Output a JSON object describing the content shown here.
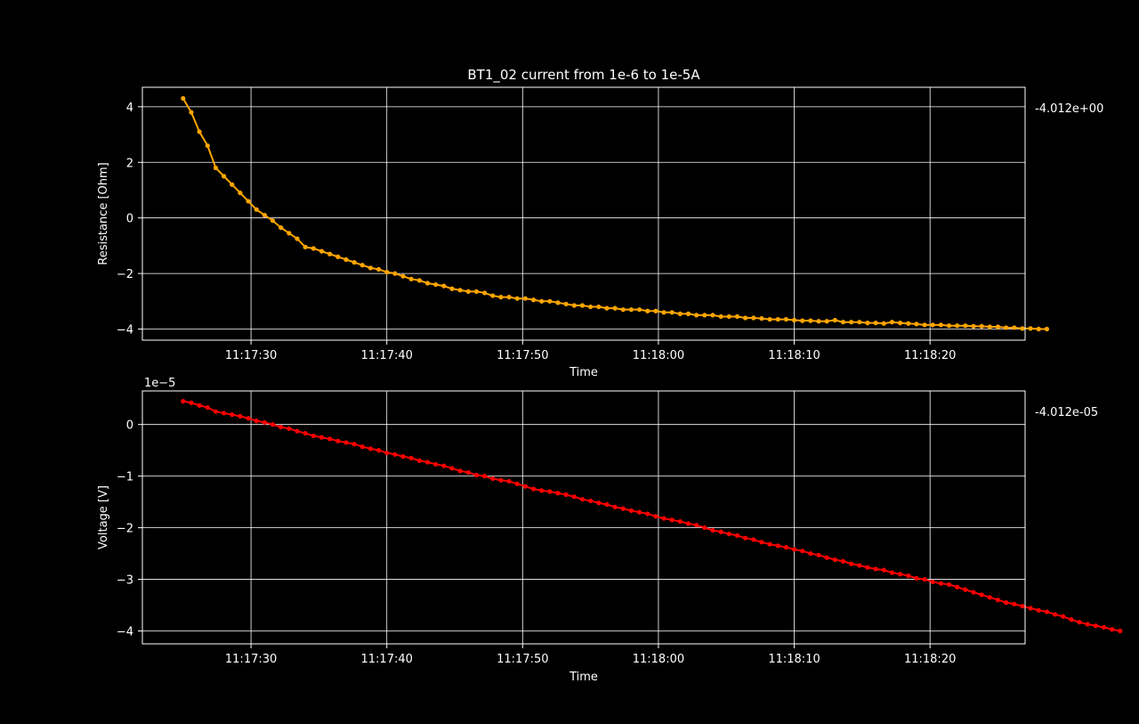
{
  "figure": {
    "title": "BT1_02 current from 1e-6 to 1e-5A",
    "background": "#000000",
    "foreground": "#ffffff"
  },
  "chart_data": [
    {
      "type": "line",
      "panel": "top",
      "xlabel": "Time",
      "ylabel": "Resistance [Ohm]",
      "offset_text": "-4.012e+00",
      "multiplier_text": "",
      "grid": true,
      "color": "#ffa500",
      "marker": "dot",
      "x_ticks": [
        "11:17:30",
        "11:17:40",
        "11:17:50",
        "11:18:00",
        "11:18:10",
        "11:18:20"
      ],
      "y_ticks": [
        -4,
        -2,
        0,
        2,
        4
      ],
      "xlim": [
        "11:17:22.0",
        "11:18:27.0"
      ],
      "ylim": [
        -4.4,
        4.7
      ],
      "x_start": "11:17:25.0",
      "x_step_seconds": 0.6,
      "series": [
        {
          "values": [
            4.3,
            3.8,
            3.1,
            2.6,
            1.8,
            1.5,
            1.2,
            0.9,
            0.6,
            0.3,
            0.1,
            -0.1,
            -0.35,
            -0.55,
            -0.75,
            -1.05,
            -1.1,
            -1.2,
            -1.3,
            -1.4,
            -1.5,
            -1.6,
            -1.7,
            -1.8,
            -1.85,
            -1.95,
            -2.0,
            -2.1,
            -2.2,
            -2.25,
            -2.35,
            -2.4,
            -2.45,
            -2.55,
            -2.6,
            -2.65,
            -2.65,
            -2.7,
            -2.8,
            -2.85,
            -2.85,
            -2.9,
            -2.9,
            -2.95,
            -3.0,
            -3.0,
            -3.05,
            -3.1,
            -3.15,
            -3.15,
            -3.2,
            -3.2,
            -3.25,
            -3.25,
            -3.3,
            -3.3,
            -3.3,
            -3.35,
            -3.35,
            -3.4,
            -3.4,
            -3.45,
            -3.45,
            -3.5,
            -3.5,
            -3.5,
            -3.55,
            -3.55,
            -3.55,
            -3.6,
            -3.6,
            -3.62,
            -3.65,
            -3.65,
            -3.65,
            -3.68,
            -3.7,
            -3.7,
            -3.72,
            -3.72,
            -3.68,
            -3.75,
            -3.75,
            -3.75,
            -3.78,
            -3.78,
            -3.8,
            -3.75,
            -3.78,
            -3.8,
            -3.82,
            -3.85,
            -3.85,
            -3.85,
            -3.88,
            -3.88,
            -3.88,
            -3.9,
            -3.9,
            -3.92,
            -3.92,
            -3.95,
            -3.95,
            -3.98,
            -3.98,
            -4.0,
            -4.0
          ]
        }
      ]
    },
    {
      "type": "line",
      "panel": "bottom",
      "xlabel": "Time",
      "ylabel": "Voltage [V]",
      "offset_text": "-4.012e-05",
      "multiplier_text": "1e−5",
      "grid": true,
      "color": "#ff0000",
      "marker": "dot",
      "x_ticks": [
        "11:17:30",
        "11:17:40",
        "11:17:50",
        "11:18:00",
        "11:18:10",
        "11:18:20"
      ],
      "y_ticks": [
        -4,
        -3,
        -2,
        -1,
        0
      ],
      "xlim": [
        "11:17:22.0",
        "11:18:27.0"
      ],
      "ylim": [
        -4.25,
        0.65
      ],
      "x_start": "11:17:25.0",
      "x_step_seconds": 0.6,
      "series": [
        {
          "values": [
            0.45,
            0.42,
            0.37,
            0.33,
            0.25,
            0.22,
            0.19,
            0.16,
            0.12,
            0.07,
            0.04,
            0.0,
            -0.05,
            -0.08,
            -0.13,
            -0.17,
            -0.22,
            -0.25,
            -0.28,
            -0.32,
            -0.35,
            -0.38,
            -0.43,
            -0.47,
            -0.5,
            -0.55,
            -0.58,
            -0.62,
            -0.65,
            -0.7,
            -0.73,
            -0.77,
            -0.8,
            -0.85,
            -0.9,
            -0.93,
            -0.98,
            -1.0,
            -1.05,
            -1.08,
            -1.1,
            -1.15,
            -1.2,
            -1.25,
            -1.28,
            -1.3,
            -1.33,
            -1.36,
            -1.4,
            -1.45,
            -1.48,
            -1.52,
            -1.55,
            -1.6,
            -1.63,
            -1.67,
            -1.7,
            -1.73,
            -1.78,
            -1.82,
            -1.85,
            -1.88,
            -1.92,
            -1.95,
            -2.0,
            -2.05,
            -2.08,
            -2.12,
            -2.15,
            -2.2,
            -2.23,
            -2.28,
            -2.32,
            -2.35,
            -2.38,
            -2.42,
            -2.45,
            -2.5,
            -2.53,
            -2.58,
            -2.62,
            -2.65,
            -2.7,
            -2.73,
            -2.77,
            -2.8,
            -2.82,
            -2.87,
            -2.9,
            -2.93,
            -2.98,
            -3.0,
            -3.05,
            -3.08,
            -3.1,
            -3.15,
            -3.2,
            -3.25,
            -3.3,
            -3.35,
            -3.4,
            -3.45,
            -3.48,
            -3.52,
            -3.56,
            -3.6,
            -3.63,
            -3.68,
            -3.72,
            -3.78,
            -3.83,
            -3.87,
            -3.9,
            -3.93,
            -3.97,
            -4.0
          ]
        }
      ]
    }
  ]
}
